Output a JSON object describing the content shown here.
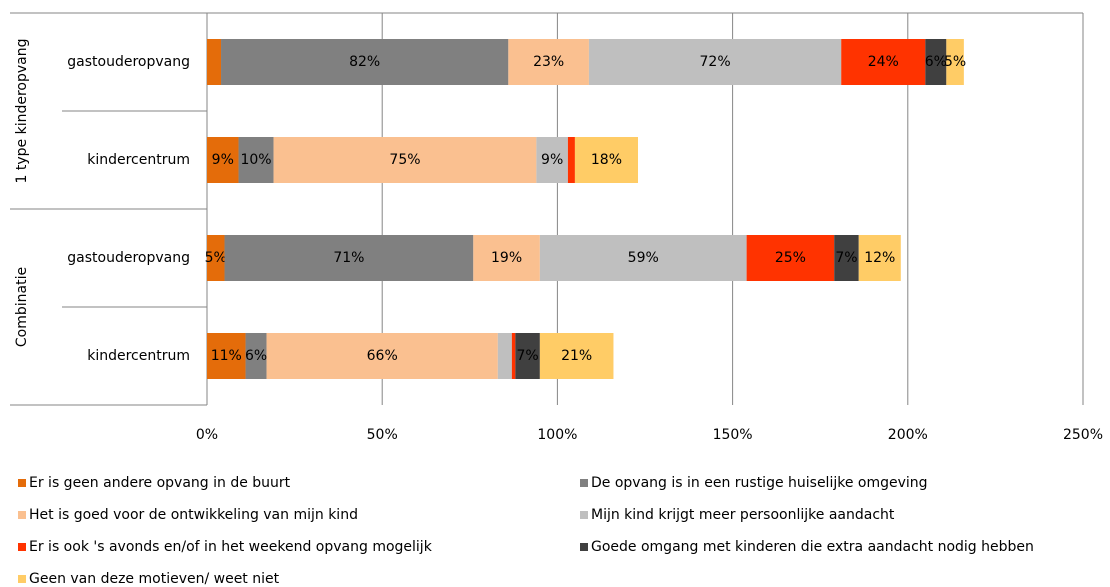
{
  "chart_data": {
    "type": "stacked_barh",
    "groups": [
      {
        "label": "1 type kinderopvang",
        "rows": [
          0,
          1
        ]
      },
      {
        "label": "Combinatie",
        "rows": [
          2,
          3
        ]
      }
    ],
    "categories": [
      "gastouderopvang",
      "kindercentrum",
      "gastouderopvang",
      "kindercentrum"
    ],
    "series": [
      {
        "name": "Er is geen andere opvang in de buurt",
        "color": "#e46c0a",
        "values": [
          4,
          9,
          5,
          11
        ],
        "value_labels": [
          null,
          "9%",
          "5%",
          "11%"
        ]
      },
      {
        "name": "De opvang is in een rustige huiselijke omgeving",
        "color": "#808080",
        "values": [
          82,
          10,
          71,
          6
        ],
        "value_labels": [
          "82%",
          "10%",
          "71%",
          "6%"
        ]
      },
      {
        "name": "Het is goed voor de ontwikkeling van mijn kind",
        "color": "#fac090",
        "values": [
          23,
          75,
          19,
          66
        ],
        "value_labels": [
          "23%",
          "75%",
          "19%",
          "66%"
        ]
      },
      {
        "name": "Mijn kind krijgt meer persoonlijke aandacht",
        "color": "#bfbfbf",
        "values": [
          72,
          9,
          59,
          4
        ],
        "value_labels": [
          "72%",
          "9%",
          "59%",
          null
        ]
      },
      {
        "name": "Er is ook 's avonds en/of in het weekend opvang mogelijk",
        "color": "#ff3300",
        "values": [
          24,
          2,
          25,
          1
        ],
        "value_labels": [
          "24%",
          null,
          "25%",
          null
        ]
      },
      {
        "name": "Goede omgang met kinderen die extra aandacht nodig hebben",
        "color": "#404040",
        "values": [
          6,
          0,
          7,
          7
        ],
        "value_labels": [
          "6%",
          null,
          "7%",
          "7%"
        ]
      },
      {
        "name": "Geen van deze motieven/ weet niet",
        "color": "#ffcc66",
        "values": [
          5,
          18,
          12,
          21
        ],
        "value_labels": [
          "5%",
          "18%",
          "12%",
          "21%"
        ]
      }
    ],
    "xlim": [
      0,
      250
    ],
    "xticks": [
      {
        "value": 0,
        "label": "0%"
      },
      {
        "value": 50,
        "label": "50%"
      },
      {
        "value": 100,
        "label": "100%"
      },
      {
        "value": 150,
        "label": "150%"
      },
      {
        "value": 200,
        "label": "200%"
      },
      {
        "value": 250,
        "label": "250%"
      }
    ],
    "grid": true,
    "legend": "bottom"
  }
}
